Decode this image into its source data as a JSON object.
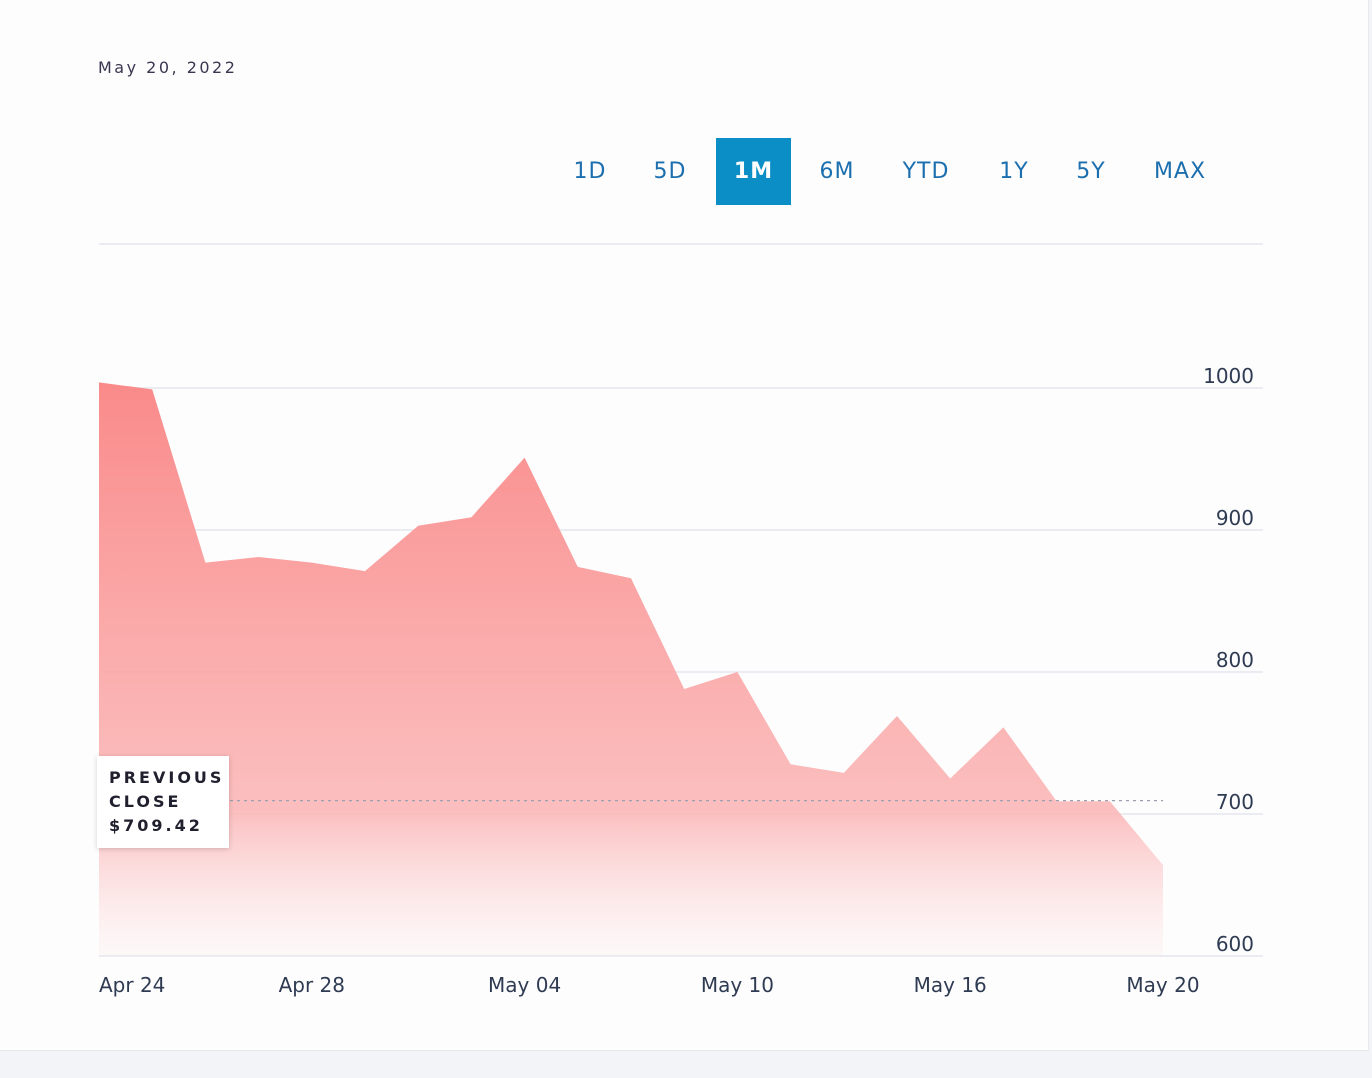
{
  "subtitle": "May 20, 2022",
  "ranges": [
    "1D",
    "5D",
    "1M",
    "6M",
    "YTD",
    "1Y",
    "5Y",
    "MAX"
  ],
  "active_range": "1M",
  "chart_data": {
    "type": "area",
    "categories": [
      "Apr 24",
      null,
      null,
      null,
      "Apr 28",
      null,
      null,
      null,
      "May 04",
      null,
      null,
      null,
      "May 10",
      null,
      null,
      null,
      "May 16",
      null,
      null,
      null,
      "May 20"
    ],
    "values": [
      1004,
      999,
      877,
      881,
      877,
      871,
      903,
      909,
      951,
      874,
      866,
      788,
      800,
      735,
      729,
      769,
      725,
      761,
      709,
      709,
      664
    ],
    "color": "#fa8a8a",
    "ylim": [
      600,
      1100
    ],
    "yticks": [
      600,
      700,
      800,
      900,
      1000
    ],
    "grid": true,
    "previous_close": {
      "title": "PREVIOUS CLOSE",
      "value": 709.42,
      "label": "$709.42"
    }
  }
}
